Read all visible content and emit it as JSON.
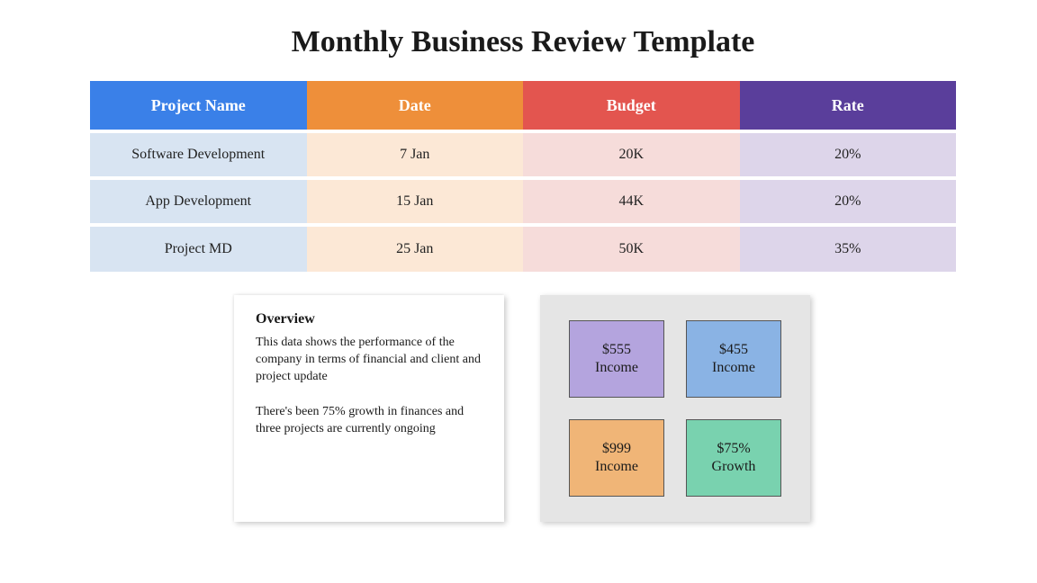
{
  "title": "Monthly Business Review Template",
  "table": {
    "headers": [
      {
        "label": "Project Name",
        "bg": "#3a80e8"
      },
      {
        "label": "Date",
        "bg": "#ee8f3a"
      },
      {
        "label": "Budget",
        "bg": "#e3554f"
      },
      {
        "label": "Rate",
        "bg": "#5a3e9b"
      }
    ],
    "column_body_colors": [
      "#d8e4f2",
      "#fce8d6",
      "#f6dcda",
      "#ddd5ea"
    ],
    "rows": [
      {
        "name": "Software Development",
        "date": "7 Jan",
        "budget": "20K",
        "rate": "20%"
      },
      {
        "name": "App Development",
        "date": "15 Jan",
        "budget": "44K",
        "rate": "20%"
      },
      {
        "name": "Project MD",
        "date": "25 Jan",
        "budget": "50K",
        "rate": "35%"
      }
    ],
    "row_gap_color": "#ffffff"
  },
  "overview": {
    "heading": "Overview",
    "p1": "This data shows the performance of the company in terms of financial and client and project update",
    "p2": "There's been 75% growth in finances and three projects are currently ongoing"
  },
  "metrics": {
    "panel_bg": "#e5e5e5",
    "boxes": [
      {
        "value": "$555",
        "label": "Income",
        "bg": "#b4a4de"
      },
      {
        "value": "$455",
        "label": "Income",
        "bg": "#8ab3e4"
      },
      {
        "value": "$999",
        "label": "Income",
        "bg": "#f0b577"
      },
      {
        "value": "$75%",
        "label": "Growth",
        "bg": "#79d2af"
      }
    ]
  }
}
